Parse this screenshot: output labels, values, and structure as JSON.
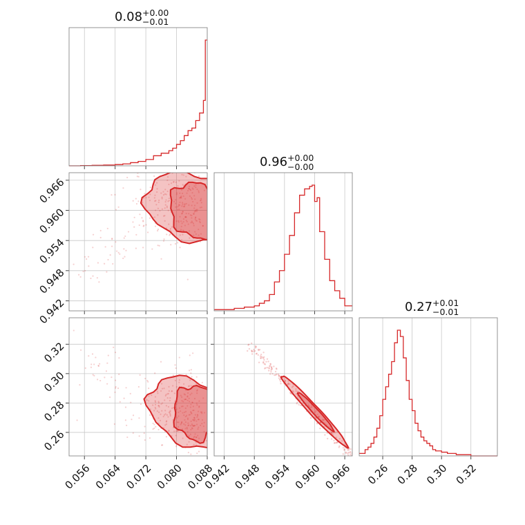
{
  "colors": {
    "accent": "#d62728",
    "grid": "#c8c8c8",
    "frame": "#888888"
  },
  "chart_data": {
    "type": "corner",
    "grid": true,
    "parameters": [
      {
        "title_value": "0.08",
        "title_plus": "+0.00",
        "title_minus": "−0.01",
        "range": [
          0.052,
          0.088
        ],
        "ticks": [
          0.056,
          0.064,
          0.072,
          0.08,
          0.088
        ],
        "tick_labels": [
          "0.056",
          "0.064",
          "0.072",
          "0.080",
          "0.088"
        ]
      },
      {
        "title_value": "0.96",
        "title_plus": "+0.00",
        "title_minus": "−0.00",
        "range": [
          0.94,
          0.9675
        ],
        "ticks": [
          0.942,
          0.948,
          0.954,
          0.96,
          0.966
        ],
        "tick_labels": [
          "0.942",
          "0.948",
          "0.954",
          "0.960",
          "0.966"
        ]
      },
      {
        "title_value": "0.27",
        "title_plus": "+0.01",
        "title_minus": "−0.01",
        "range": [
          0.244,
          0.338
        ],
        "ticks": [
          0.26,
          0.28,
          0.3,
          0.32
        ],
        "tick_labels": [
          "0.26",
          "0.28",
          "0.30",
          "0.32"
        ]
      }
    ],
    "histograms": [
      {
        "param": 0,
        "bins_x": [
          0.052,
          0.055,
          0.058,
          0.061,
          0.064,
          0.066,
          0.068,
          0.07,
          0.072,
          0.074,
          0.076,
          0.077,
          0.078,
          0.079,
          0.08,
          0.081,
          0.082,
          0.083,
          0.084,
          0.085,
          0.086,
          0.087,
          0.0875,
          0.088
        ],
        "counts": [
          0,
          0.002,
          0.004,
          0.006,
          0.01,
          0.015,
          0.025,
          0.035,
          0.05,
          0.08,
          0.1,
          0.1,
          0.12,
          0.14,
          0.17,
          0.2,
          0.24,
          0.28,
          0.3,
          0.36,
          0.42,
          0.52,
          1.0
        ]
      },
      {
        "param": 1,
        "bins_x": [
          0.94,
          0.942,
          0.944,
          0.946,
          0.948,
          0.949,
          0.95,
          0.951,
          0.952,
          0.953,
          0.954,
          0.955,
          0.956,
          0.957,
          0.958,
          0.959,
          0.9595,
          0.96,
          0.9605,
          0.961,
          0.962,
          0.963,
          0.964,
          0.965,
          0.966,
          0.9675
        ],
        "counts": [
          0.01,
          0.01,
          0.02,
          0.03,
          0.04,
          0.06,
          0.08,
          0.13,
          0.23,
          0.32,
          0.45,
          0.6,
          0.78,
          0.92,
          0.97,
          0.99,
          1.0,
          0.87,
          0.9,
          0.63,
          0.41,
          0.24,
          0.16,
          0.1,
          0.04
        ]
      },
      {
        "param": 2,
        "bins_x": [
          0.244,
          0.248,
          0.25,
          0.252,
          0.254,
          0.256,
          0.258,
          0.26,
          0.262,
          0.264,
          0.266,
          0.268,
          0.27,
          0.272,
          0.274,
          0.276,
          0.278,
          0.28,
          0.282,
          0.284,
          0.286,
          0.288,
          0.29,
          0.292,
          0.294,
          0.296,
          0.3,
          0.304,
          0.31,
          0.32,
          0.338
        ],
        "counts": [
          0.02,
          0.05,
          0.07,
          0.1,
          0.15,
          0.22,
          0.32,
          0.45,
          0.55,
          0.65,
          0.75,
          0.9,
          1.0,
          0.95,
          0.78,
          0.6,
          0.45,
          0.36,
          0.26,
          0.2,
          0.15,
          0.12,
          0.1,
          0.08,
          0.05,
          0.04,
          0.03,
          0.02,
          0.01,
          0.0
        ]
      }
    ],
    "pairs": [
      {
        "x_param": 0,
        "y_param": 1
      },
      {
        "x_param": 0,
        "y_param": 2
      },
      {
        "x_param": 1,
        "y_param": 2
      }
    ]
  }
}
